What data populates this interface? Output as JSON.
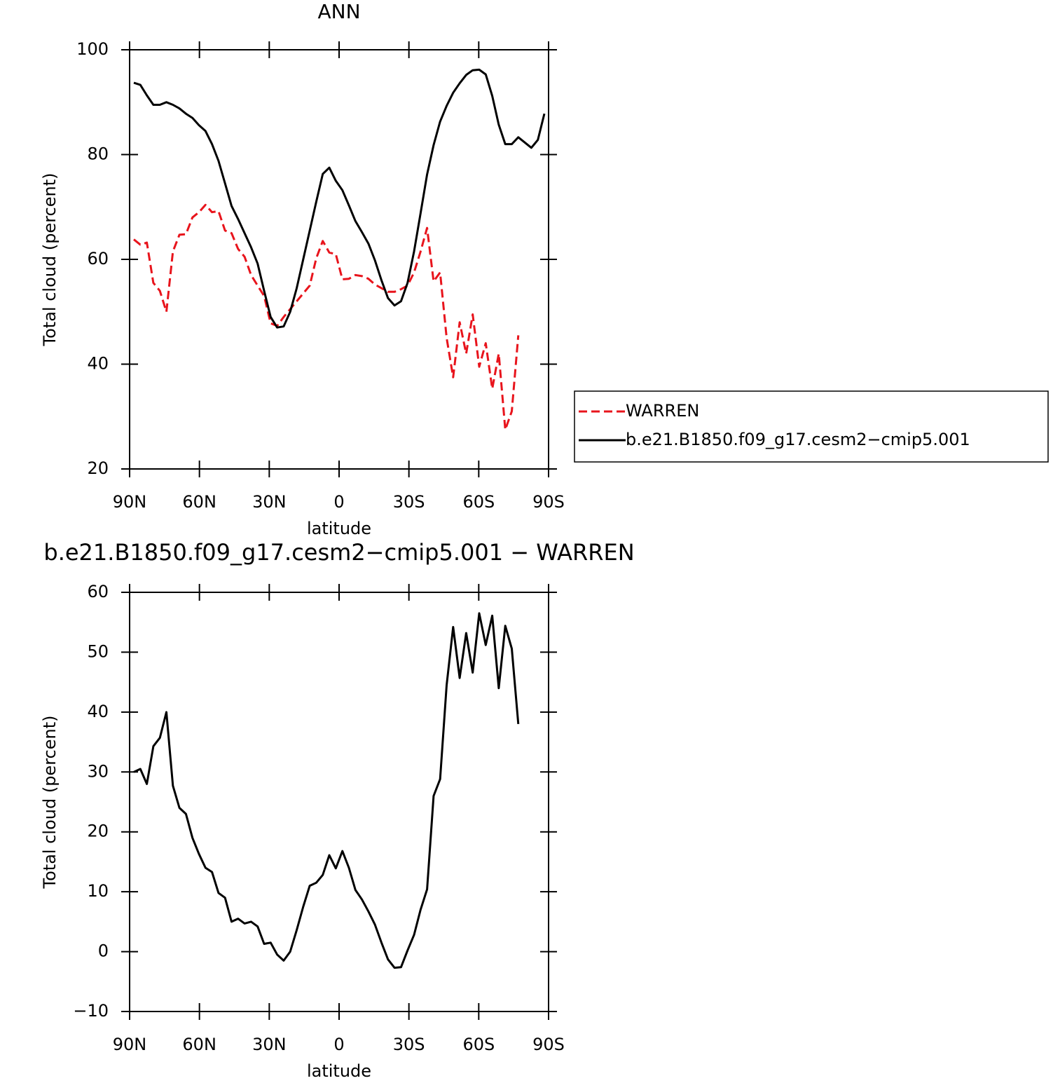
{
  "chart_data": [
    {
      "type": "line",
      "title": "ANN",
      "xlabel": "latitude",
      "ylabel": "Total cloud (percent)",
      "xlim": [
        90,
        -90
      ],
      "xticks": [
        {
          "value": 90,
          "label": "90N"
        },
        {
          "value": 60,
          "label": "60N"
        },
        {
          "value": 30,
          "label": "30N"
        },
        0,
        {
          "value": -30,
          "label": "30S"
        },
        {
          "value": -60,
          "label": "60S"
        },
        {
          "value": -90,
          "label": "90S"
        }
      ],
      "ylim": [
        20,
        100
      ],
      "yticks": [
        20,
        40,
        60,
        80,
        100
      ],
      "legend": "right",
      "x": [
        88.2,
        85.4,
        82.6,
        79.8,
        77.0,
        74.2,
        71.4,
        68.6,
        65.8,
        63.0,
        60.2,
        57.4,
        54.6,
        51.8,
        49.0,
        46.2,
        43.4,
        40.6,
        37.8,
        35.0,
        32.2,
        29.4,
        26.6,
        23.8,
        21.0,
        18.2,
        15.4,
        12.6,
        9.8,
        7.0,
        4.2,
        1.4,
        -1.4,
        -4.2,
        -7.0,
        -9.8,
        -12.6,
        -15.4,
        -18.2,
        -21.0,
        -23.8,
        -26.6,
        -29.4,
        -32.2,
        -35.0,
        -37.8,
        -40.6,
        -43.4,
        -46.2,
        -49.0,
        -51.8,
        -54.6,
        -57.4,
        -60.2,
        -63.0,
        -65.8,
        -68.6,
        -71.4,
        -74.2,
        -77.0,
        -79.8,
        -82.6,
        -85.4,
        -88.2
      ],
      "series": [
        {
          "name": "WARREN",
          "color": "#e8141c",
          "dash": true,
          "values": [
            63.8,
            62.8,
            63.2,
            55.5,
            54,
            50,
            61.5,
            64.7,
            64.8,
            68,
            69,
            70.4,
            69,
            69.2,
            65.5,
            65,
            62,
            60.5,
            57,
            55,
            53,
            47.8,
            47.3,
            49,
            50.5,
            52,
            53.5,
            55,
            60.2,
            63.5,
            61.3,
            61,
            56.2,
            56.3,
            57,
            56.8,
            56.3,
            55.2,
            54.5,
            53.8,
            53.8,
            54.3,
            55,
            57.5,
            61.5,
            66,
            55.8,
            57.5,
            45,
            37.5,
            48,
            42,
            49.5,
            39.5,
            44,
            35.3,
            42,
            27.5,
            31,
            45.5,
            null,
            null,
            null,
            null
          ]
        },
        {
          "name": "b.e21.B1850.f09_g17.cesm2−cmip5.001",
          "color": "#000000",
          "dash": false,
          "values": [
            93.7,
            93.3,
            91.3,
            89.5,
            89.5,
            90,
            89.5,
            88.8,
            87.8,
            87,
            85.6,
            84.5,
            82,
            78.8,
            74.5,
            70.2,
            67.7,
            65,
            62.3,
            59.2,
            54,
            49,
            47,
            47.2,
            50,
            54.5,
            60,
            65.5,
            71,
            76.3,
            77.5,
            75,
            73.2,
            70.3,
            67.3,
            65.2,
            63,
            59.8,
            56,
            52.6,
            51.2,
            52,
            55.5,
            61.5,
            68.8,
            76.2,
            81.8,
            86.3,
            89.3,
            91.8,
            93.6,
            95.2,
            96.1,
            96.2,
            95.3,
            91.2,
            85.7,
            82,
            82,
            83.3,
            82.3,
            81.3,
            82.8,
            87.8
          ]
        }
      ]
    },
    {
      "type": "line",
      "title": "b.e21.B1850.f09_g17.cesm2−cmip5.001 − WARREN",
      "xlabel": "latitude",
      "ylabel": "Total cloud (percent)",
      "xlim": [
        90,
        -90
      ],
      "xticks": [
        {
          "value": 90,
          "label": "90N"
        },
        {
          "value": 60,
          "label": "60N"
        },
        {
          "value": 30,
          "label": "30N"
        },
        0,
        {
          "value": -30,
          "label": "30S"
        },
        {
          "value": -60,
          "label": "60S"
        },
        {
          "value": -90,
          "label": "90S"
        }
      ],
      "ylim": [
        -10,
        60
      ],
      "yticks": [
        {
          "value": -10,
          "label": "−10"
        },
        0,
        10,
        20,
        30,
        40,
        50,
        60
      ],
      "x": [
        88.2,
        85.4,
        82.6,
        79.8,
        77.0,
        74.2,
        71.4,
        68.6,
        65.8,
        63.0,
        60.2,
        57.4,
        54.6,
        51.8,
        49.0,
        46.2,
        43.4,
        40.6,
        37.8,
        35.0,
        32.2,
        29.4,
        26.6,
        23.8,
        21.0,
        18.2,
        15.4,
        12.6,
        9.8,
        7.0,
        4.2,
        1.4,
        -1.4,
        -4.2,
        -7.0,
        -9.8,
        -12.6,
        -15.4,
        -18.2,
        -21.0,
        -23.8,
        -26.6,
        -29.4,
        -32.2,
        -35.0,
        -37.8,
        -40.6,
        -43.4,
        -46.2,
        -49.0,
        -51.8,
        -54.6,
        -57.4,
        -60.2,
        -63.0,
        -65.8,
        -68.6,
        -71.4,
        -74.2,
        -77.0
      ],
      "series": [
        {
          "color": "#000000",
          "dash": false,
          "values": [
            30,
            30.5,
            28,
            34.3,
            35.7,
            40,
            27.7,
            24,
            23,
            19,
            16.3,
            14,
            13.3,
            9.8,
            9,
            5,
            5.5,
            4.7,
            5,
            4.2,
            1.3,
            1.5,
            -0.5,
            -1.5,
            0,
            3.6,
            7.5,
            11,
            11.5,
            12.8,
            16.1,
            13.9,
            16.8,
            14,
            10.3,
            8.7,
            6.7,
            4.5,
            1.5,
            -1.3,
            -2.7,
            -2.6,
            0.2,
            2.8,
            7,
            10.4,
            26,
            28.8,
            44.5,
            54.2,
            45.7,
            53.2,
            46.6,
            56.5,
            51.2,
            56.1,
            44,
            54.4,
            50.6,
            38
          ]
        }
      ]
    }
  ]
}
